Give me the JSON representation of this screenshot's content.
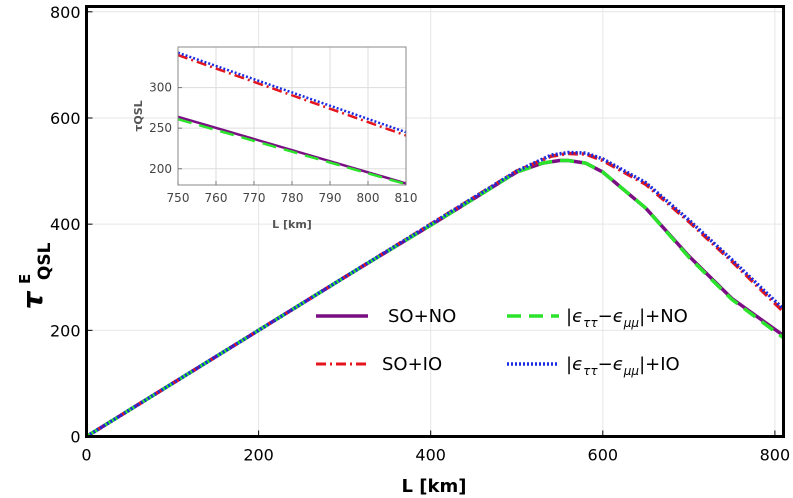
{
  "chart_data": [
    {
      "type": "line",
      "xlabel": "L [km]",
      "ylabel": "τ",
      "ylabel_sup": "E",
      "ylabel_sub": "QSL",
      "xlim": [
        0,
        810
      ],
      "ylim": [
        0,
        810
      ],
      "xticks": [
        "0",
        "200",
        "400",
        "600",
        "800"
      ],
      "yticks": [
        "0",
        "200",
        "400",
        "600",
        "800"
      ],
      "grid": true,
      "legend_position": "lower-right",
      "series": [
        {
          "name": "SO+NO",
          "color": "#7a0f83",
          "style": "solid",
          "x": [
            0,
            100,
            200,
            300,
            400,
            450,
            500,
            530,
            550,
            560,
            580,
            600,
            650,
            700,
            750,
            810
          ],
          "y": [
            0,
            100,
            200,
            300,
            398,
            448,
            498,
            515,
            520,
            520,
            515,
            498,
            430,
            340,
            260,
            190
          ]
        },
        {
          "name": "SO+IO",
          "color": "#e4151c",
          "style": "dashdot",
          "x": [
            0,
            100,
            200,
            300,
            400,
            450,
            500,
            540,
            560,
            580,
            600,
            650,
            700,
            750,
            810
          ],
          "y": [
            0,
            100,
            200,
            300,
            400,
            450,
            500,
            528,
            533,
            532,
            520,
            475,
            405,
            330,
            235
          ]
        },
        {
          "name": "legend_label_green",
          "color": "#2be32b",
          "style": "dashed",
          "x": [
            0,
            100,
            200,
            300,
            400,
            450,
            500,
            530,
            550,
            560,
            580,
            600,
            650,
            700,
            750,
            810
          ],
          "y": [
            0,
            100,
            200,
            300,
            398,
            448,
            498,
            515,
            520,
            520,
            515,
            498,
            430,
            338,
            258,
            186
          ]
        },
        {
          "name": "legend_label_blue",
          "color": "#1a2be0",
          "style": "dotted",
          "x": [
            0,
            100,
            200,
            300,
            400,
            450,
            500,
            540,
            560,
            580,
            600,
            650,
            700,
            750,
            810
          ],
          "y": [
            0,
            100,
            200,
            300,
            400,
            450,
            500,
            530,
            535,
            534,
            523,
            478,
            408,
            333,
            240
          ]
        }
      ],
      "legend_label_green": "|ϵ_ττ−ϵ_μμ|+NO",
      "legend_label_blue": "|ϵ_ττ−ϵ_μμ|+IO"
    },
    {
      "type": "line",
      "inset": true,
      "xlabel": "L [km]",
      "ylabel": "τQSL",
      "xlim": [
        750,
        810
      ],
      "ylim": [
        180,
        350
      ],
      "xticks": [
        "750",
        "760",
        "770",
        "780",
        "790",
        "800",
        "810"
      ],
      "yticks": [
        "200",
        "250",
        "300"
      ],
      "grid": true,
      "series": [
        {
          "name": "SO+NO",
          "color": "#7a0f83",
          "style": "solid",
          "x": [
            750,
            810
          ],
          "y": [
            264,
            182
          ]
        },
        {
          "name": "SO+IO",
          "color": "#e4151c",
          "style": "dashdot",
          "x": [
            750,
            810
          ],
          "y": [
            340,
            241
          ]
        },
        {
          "name": "legend_label_green",
          "color": "#2be32b",
          "style": "dashed",
          "x": [
            750,
            810
          ],
          "y": [
            261,
            181
          ]
        },
        {
          "name": "legend_label_blue",
          "color": "#1a2be0",
          "style": "dotted",
          "x": [
            750,
            810
          ],
          "y": [
            343,
            245
          ]
        }
      ]
    }
  ]
}
